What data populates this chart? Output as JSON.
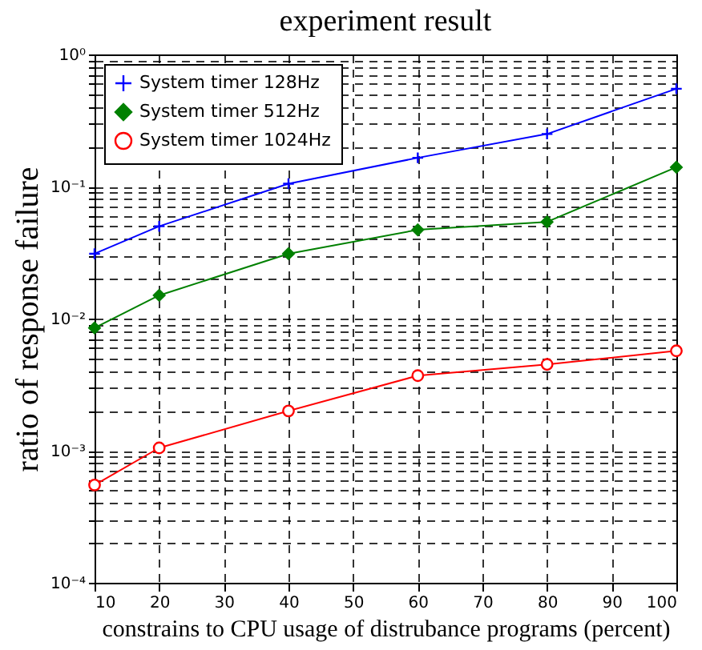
{
  "chart_data": {
    "type": "line",
    "title": "experiment result",
    "xlabel": "constrains to CPU usage of distrubance programs (percent)",
    "ylabel": "ratio of response failure",
    "x": [
      10,
      20,
      40,
      60,
      80,
      100
    ],
    "series": [
      {
        "name": "System timer 128Hz",
        "color": "#0000ff",
        "marker": "cross",
        "values": [
          0.031,
          0.05,
          0.105,
          0.165,
          0.25,
          0.55
        ]
      },
      {
        "name": "System timer 512Hz",
        "color": "#008000",
        "marker": "diamond",
        "values": [
          0.0085,
          0.015,
          0.031,
          0.047,
          0.054,
          0.14
        ]
      },
      {
        "name": "System timer 1024Hz",
        "color": "#ff0000",
        "marker": "circle",
        "values": [
          0.00055,
          0.00105,
          0.002,
          0.0037,
          0.0045,
          0.0057
        ]
      }
    ],
    "log": "y",
    "xlim": [
      10,
      100
    ],
    "xticks": [
      10,
      20,
      30,
      40,
      50,
      60,
      70,
      80,
      90,
      100
    ],
    "ylim": [
      0.0001,
      1
    ],
    "yticks": [
      {
        "value": 0.0001,
        "label": "10⁻⁴"
      },
      {
        "value": 0.0002,
        "label": null
      },
      {
        "value": 0.0003,
        "label": null
      },
      {
        "value": 0.0004,
        "label": null
      },
      {
        "value": 0.0005,
        "label": null
      },
      {
        "value": 0.0006,
        "label": null
      },
      {
        "value": 0.0007,
        "label": null
      },
      {
        "value": 0.0008,
        "label": null
      },
      {
        "value": 0.0009,
        "label": null
      },
      {
        "value": 0.001,
        "label": "10⁻³"
      },
      {
        "value": 0.002,
        "label": null
      },
      {
        "value": 0.003,
        "label": null
      },
      {
        "value": 0.004,
        "label": null
      },
      {
        "value": 0.005,
        "label": null
      },
      {
        "value": 0.006,
        "label": null
      },
      {
        "value": 0.007,
        "label": null
      },
      {
        "value": 0.008,
        "label": null
      },
      {
        "value": 0.009,
        "label": null
      },
      {
        "value": 0.01,
        "label": "10⁻²"
      },
      {
        "value": 0.02,
        "label": null
      },
      {
        "value": 0.03,
        "label": null
      },
      {
        "value": 0.04,
        "label": null
      },
      {
        "value": 0.05,
        "label": null
      },
      {
        "value": 0.06,
        "label": null
      },
      {
        "value": 0.07,
        "label": null
      },
      {
        "value": 0.08,
        "label": null
      },
      {
        "value": 0.09,
        "label": null
      },
      {
        "value": 0.1,
        "label": "10⁻¹"
      },
      {
        "value": 0.2,
        "label": null
      },
      {
        "value": 0.3,
        "label": null
      },
      {
        "value": 0.4,
        "label": null
      },
      {
        "value": 0.5,
        "label": null
      },
      {
        "value": 0.6,
        "label": null
      },
      {
        "value": 0.7,
        "label": null
      },
      {
        "value": 0.8,
        "label": null
      },
      {
        "value": 0.9,
        "label": null
      },
      {
        "value": 1,
        "label": "10⁰"
      }
    ],
    "grid": true,
    "legend": "top left",
    "line_style": "solid"
  }
}
